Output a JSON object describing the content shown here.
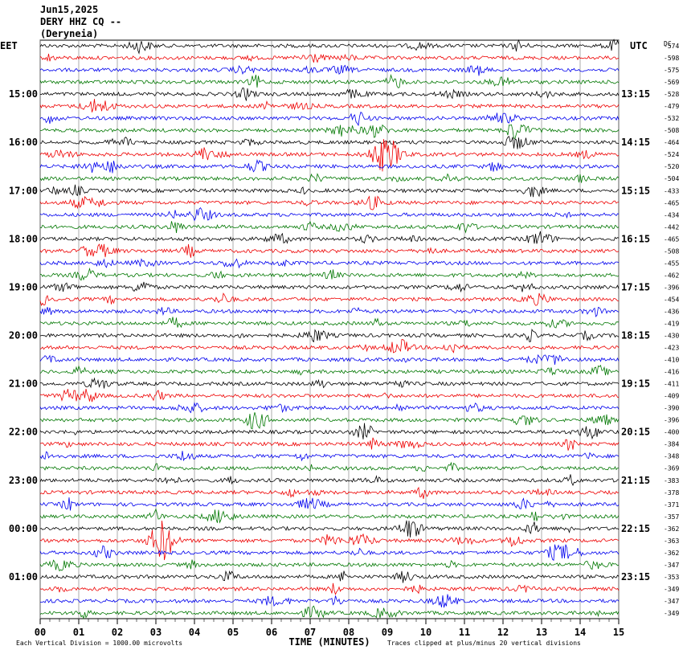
{
  "header": {
    "date": "Jun15,2025",
    "station": "DERY HHZ CQ --",
    "location": "(Deryneia)"
  },
  "left_timezone": "EET",
  "right_timezone": "UTC",
  "dc_label": "DC",
  "left_hour_labels": [
    "15:00",
    "16:00",
    "17:00",
    "18:00",
    "19:00",
    "20:00",
    "21:00",
    "22:00",
    "23:00",
    "00:00",
    "01:00"
  ],
  "right_hour_labels": [
    "13:15",
    "14:15",
    "15:15",
    "16:15",
    "17:15",
    "18:15",
    "19:15",
    "20:15",
    "21:15",
    "22:15",
    "23:15"
  ],
  "trace_dc_offsets": [
    -574,
    -598,
    -575,
    -569,
    -528,
    -479,
    -532,
    -508,
    -464,
    -524,
    -520,
    -504,
    -433,
    -465,
    -434,
    -442,
    -465,
    -508,
    -455,
    -462,
    -396,
    -454,
    -436,
    -419,
    -430,
    -423,
    -410,
    -416,
    -411,
    -409,
    -390,
    -396,
    -400,
    -384,
    -348,
    -369,
    -383,
    -378,
    -371,
    -357,
    -362,
    -363,
    -362,
    -347,
    -353,
    -349,
    -347,
    -349
  ],
  "x_axis": {
    "label": "TIME (MINUTES)",
    "ticks": [
      "00",
      "01",
      "02",
      "03",
      "04",
      "05",
      "06",
      "07",
      "08",
      "09",
      "10",
      "11",
      "12",
      "13",
      "14",
      "15"
    ]
  },
  "footer": {
    "scale_note": "Each Vertical Division = 1000.00 microvolts",
    "clip_note": "Traces clipped at plus/minus 20 vertical divisions"
  }
}
